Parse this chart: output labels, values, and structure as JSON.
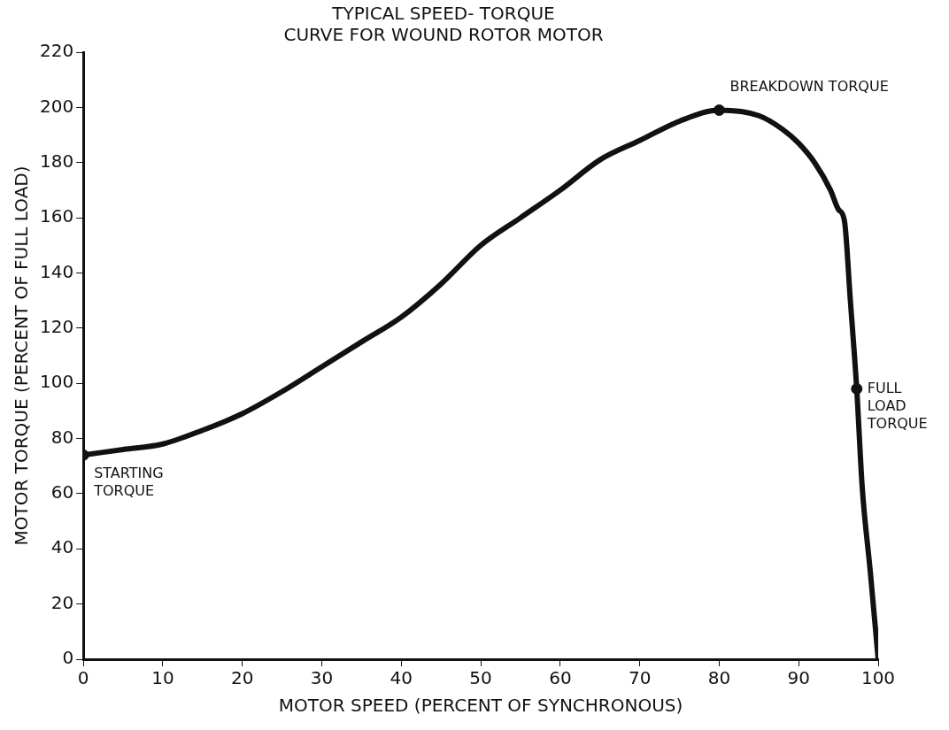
{
  "chart_data": {
    "type": "line",
    "title": "TYPICAL SPEED- TORQUE\nCURVE FOR WOUND ROTOR MOTOR",
    "xlabel": "MOTOR SPEED (PERCENT OF SYNCHRONOUS)",
    "ylabel": "MOTOR TORQUE (PERCENT OF FULL LOAD)",
    "xlim": [
      0,
      100
    ],
    "xticks": [
      0,
      10,
      20,
      30,
      40,
      50,
      60,
      70,
      80,
      90,
      100
    ],
    "ylim": [
      0,
      220
    ],
    "yticks": [
      0,
      20,
      40,
      60,
      80,
      100,
      120,
      140,
      160,
      180,
      200,
      220
    ],
    "grid": false,
    "legend": false,
    "line_style": "solid",
    "series": [
      {
        "color": "#111111",
        "marker": "none",
        "x": [
          0,
          5,
          10,
          15,
          20,
          25,
          30,
          35,
          40,
          45,
          50,
          55,
          60,
          65,
          70,
          75,
          80,
          85,
          88,
          90,
          92,
          94,
          95,
          95.75,
          96.5,
          97.3,
          98,
          99,
          100
        ],
        "values": [
          74,
          76,
          78,
          83,
          89,
          97,
          106,
          115,
          124,
          136,
          150,
          160,
          170,
          181,
          188,
          195,
          199,
          197,
          192,
          187,
          180,
          170,
          163,
          159,
          130,
          98,
          62,
          32,
          0
        ]
      },
      {
        "type": "scatter",
        "color": "#111111",
        "marker": "circle",
        "x": [
          0,
          80,
          97.3
        ],
        "values": [
          74,
          199,
          98
        ]
      }
    ],
    "annotations": [
      {
        "text": "STARTING\nTORQUE",
        "x": 0,
        "y": 74
      },
      {
        "text": "BREAKDOWN TORQUE",
        "x": 80,
        "y": 199
      },
      {
        "text": "FULL\nLOAD\nTORQUE",
        "x": 97.3,
        "y": 98
      }
    ]
  }
}
